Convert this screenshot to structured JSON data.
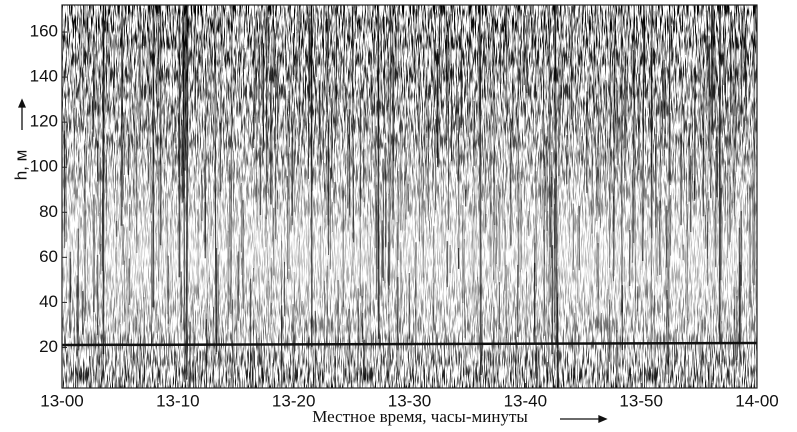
{
  "chart_data": {
    "type": "echogram",
    "ylabel": "h, м",
    "xlabel": "Местное время, часы-минуты",
    "ylim": [
      2,
      172
    ],
    "yticks": [
      20,
      40,
      60,
      80,
      100,
      120,
      140,
      160
    ],
    "xlim": [
      0,
      60
    ],
    "xticks": [
      {
        "value": 0,
        "label": "13-00"
      },
      {
        "value": 10,
        "label": "13-10"
      },
      {
        "value": 20,
        "label": "13-20"
      },
      {
        "value": 30,
        "label": "13-30"
      },
      {
        "value": 40,
        "label": "13-40"
      },
      {
        "value": 50,
        "label": "13-50"
      },
      {
        "value": 60,
        "label": "14-00"
      }
    ]
  }
}
